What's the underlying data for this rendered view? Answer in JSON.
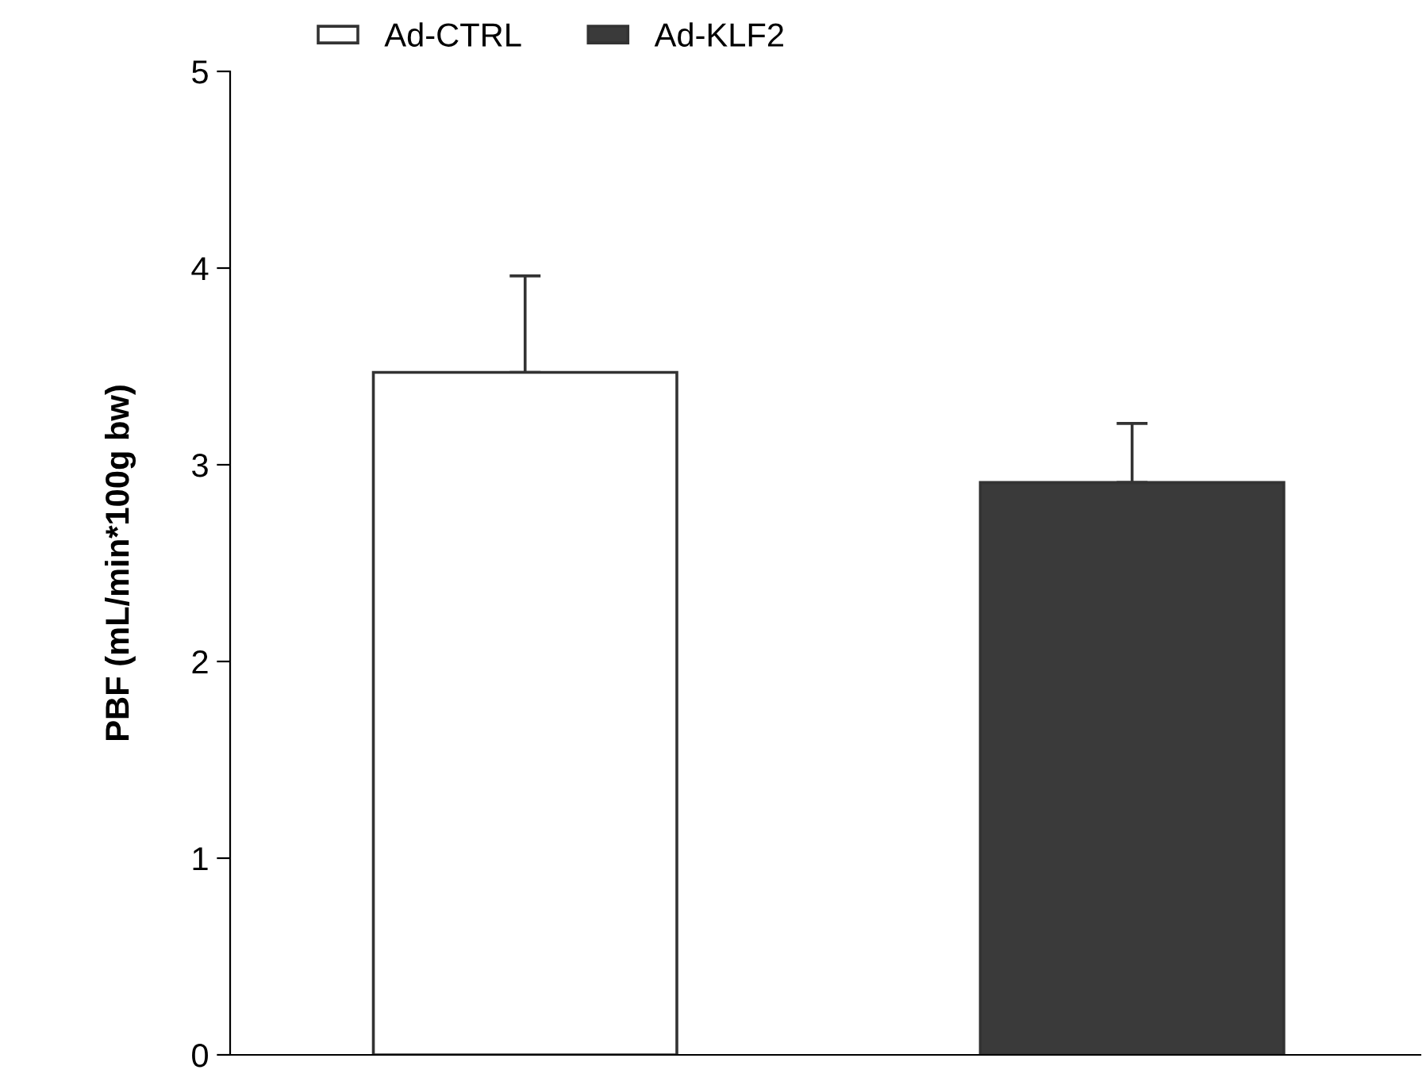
{
  "chart_data": {
    "type": "bar",
    "ylabel": "PBF (mL/min*100g bw)",
    "categories": [
      null,
      null
    ],
    "series": [
      {
        "name": "Ad-CTRL",
        "color": "#ffffff",
        "values": [
          3.47,
          null
        ],
        "errors": [
          [
            3.47,
            3.96
          ],
          null
        ]
      },
      {
        "name": "Ad-KLF2",
        "color": "#3a3a3a",
        "values": [
          null,
          2.91
        ],
        "errors": [
          null,
          [
            2.91,
            3.21
          ]
        ]
      }
    ],
    "ylim": [
      0,
      5
    ],
    "yticks": [
      0,
      1,
      2,
      3,
      4,
      5
    ],
    "grid": false,
    "legend": "top"
  }
}
